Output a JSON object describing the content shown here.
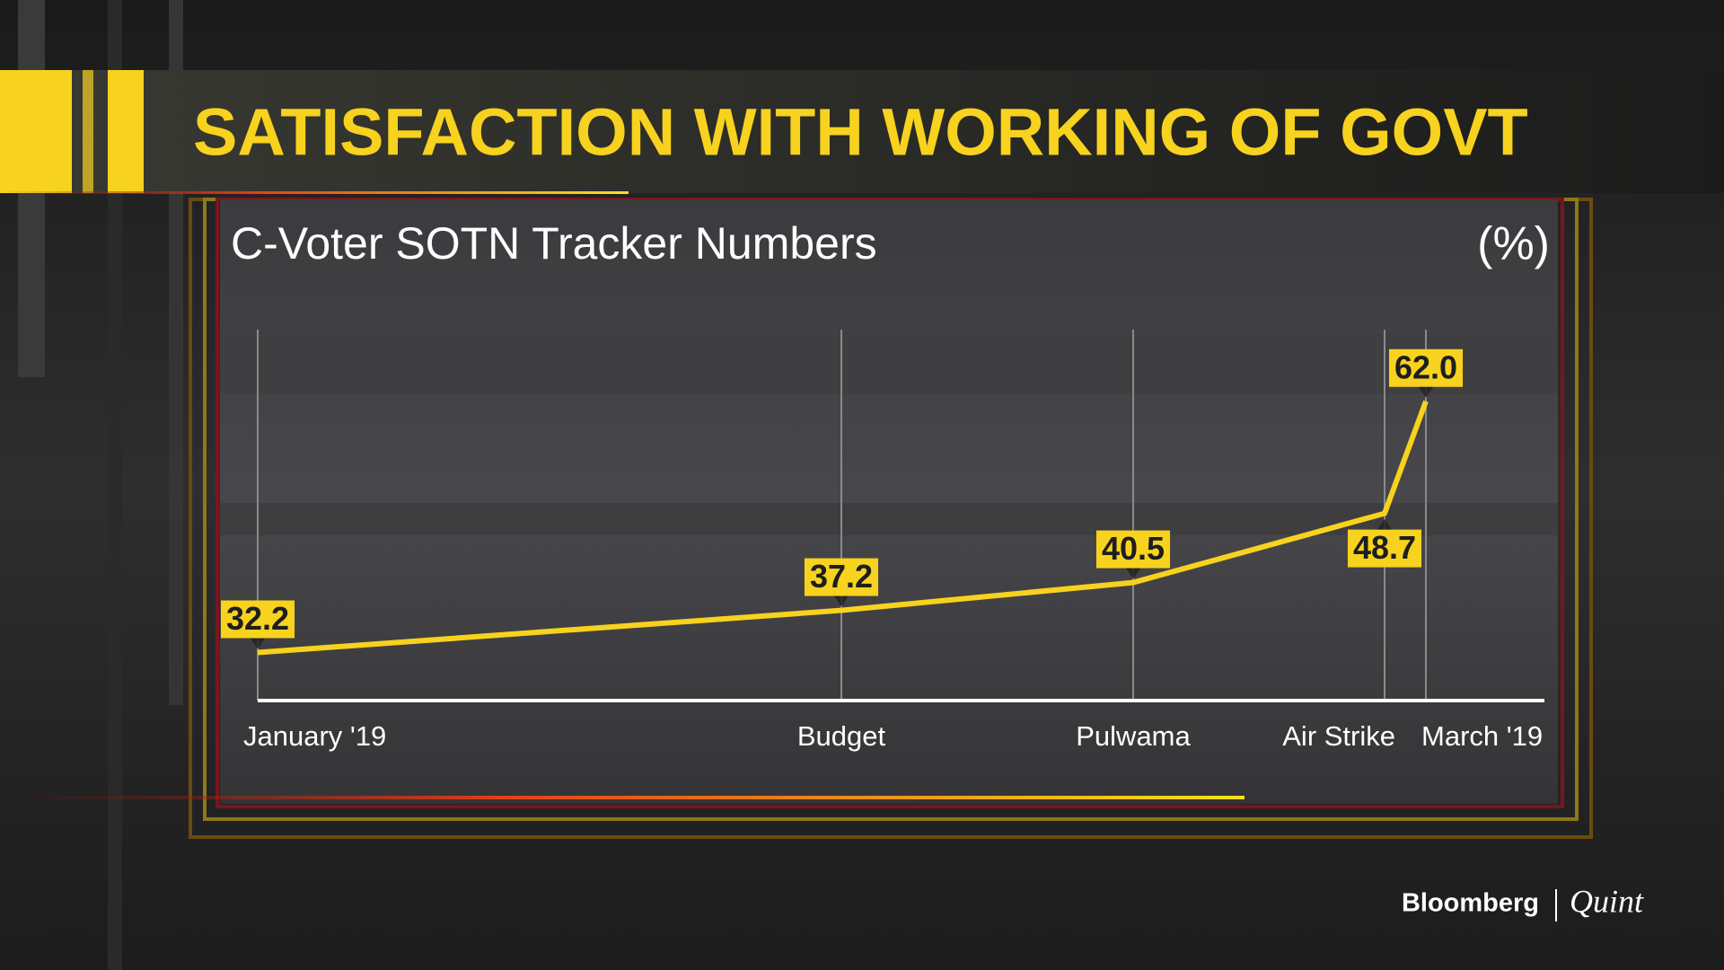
{
  "chart_data": {
    "type": "line",
    "title": "SATISFACTION WITH WORKING OF GOVT",
    "subtitle": "C-Voter SOTN Tracker Numbers",
    "y_label": "(%)",
    "categories": [
      "January '19",
      "Budget",
      "Pulwama",
      "Air Strike",
      "March '19"
    ],
    "series": [
      {
        "color": "#f7d21e",
        "values": [
          32.2,
          37.2,
          40.5,
          48.7,
          62.0
        ],
        "value_labels": [
          "32.2",
          "37.2",
          "40.5",
          "48.7",
          "62.0"
        ]
      }
    ],
    "ylim": [
      26.5,
      70.5
    ]
  },
  "logo": {
    "left": "Bloomberg",
    "right": "Quint"
  }
}
